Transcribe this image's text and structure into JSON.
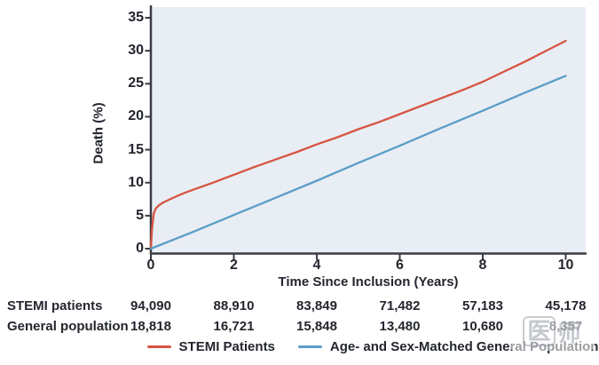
{
  "chart_data": {
    "type": "line",
    "title": "",
    "xlabel": "Time Since Inclusion (Years)",
    "ylabel": "Death (%)",
    "xlim": [
      0,
      10
    ],
    "ylim": [
      0,
      35
    ],
    "x_ticks": [
      0,
      2,
      4,
      6,
      8,
      10
    ],
    "y_ticks": [
      0,
      5,
      10,
      15,
      20,
      25,
      30,
      35
    ],
    "grid": false,
    "plot_background": "#e8eef4",
    "axis_color": "#3a3c42",
    "legend_position": "bottom",
    "series": [
      {
        "name": "STEMI Patients",
        "color": "#d75442",
        "x": [
          0,
          0.03,
          0.07,
          0.12,
          0.2,
          0.3,
          0.5,
          0.75,
          1,
          1.5,
          2,
          2.5,
          3,
          3.5,
          4,
          4.5,
          5,
          5.5,
          6,
          6.5,
          7,
          7.5,
          8,
          8.5,
          9,
          9.5,
          10
        ],
        "y": [
          0,
          3.2,
          5.3,
          6.1,
          6.6,
          7.0,
          7.6,
          8.3,
          8.9,
          10.0,
          11.2,
          12.4,
          13.5,
          14.6,
          15.8,
          16.9,
          18.1,
          19.2,
          20.4,
          21.6,
          22.8,
          24.0,
          25.3,
          26.8,
          28.3,
          29.9,
          31.5
        ]
      },
      {
        "name": "Age- and Sex-Matched General Population",
        "color": "#5b9dc7",
        "x": [
          0,
          1,
          2,
          3,
          4,
          5,
          6,
          7,
          8,
          9,
          10
        ],
        "y": [
          0,
          2.5,
          5.1,
          7.7,
          10.3,
          13.0,
          15.6,
          18.3,
          20.9,
          23.6,
          26.2
        ]
      }
    ],
    "risk_table": {
      "rows": [
        {
          "label": "STEMI patients",
          "values": [
            "94,090",
            "88,910",
            "83,849",
            "71,482",
            "57,183",
            "45,178"
          ]
        },
        {
          "label": "General population",
          "values": [
            "18,818",
            "16,721",
            "15,848",
            "13,480",
            "10,680",
            "8,357"
          ]
        }
      ]
    }
  },
  "legend": {
    "items": [
      {
        "label": "STEMI Patients",
        "color": "#d75442"
      },
      {
        "label": "Age- and Sex-Matched General Population",
        "color": "#5b9dc7"
      }
    ]
  },
  "watermark": {
    "chars": [
      "医",
      "师"
    ]
  }
}
